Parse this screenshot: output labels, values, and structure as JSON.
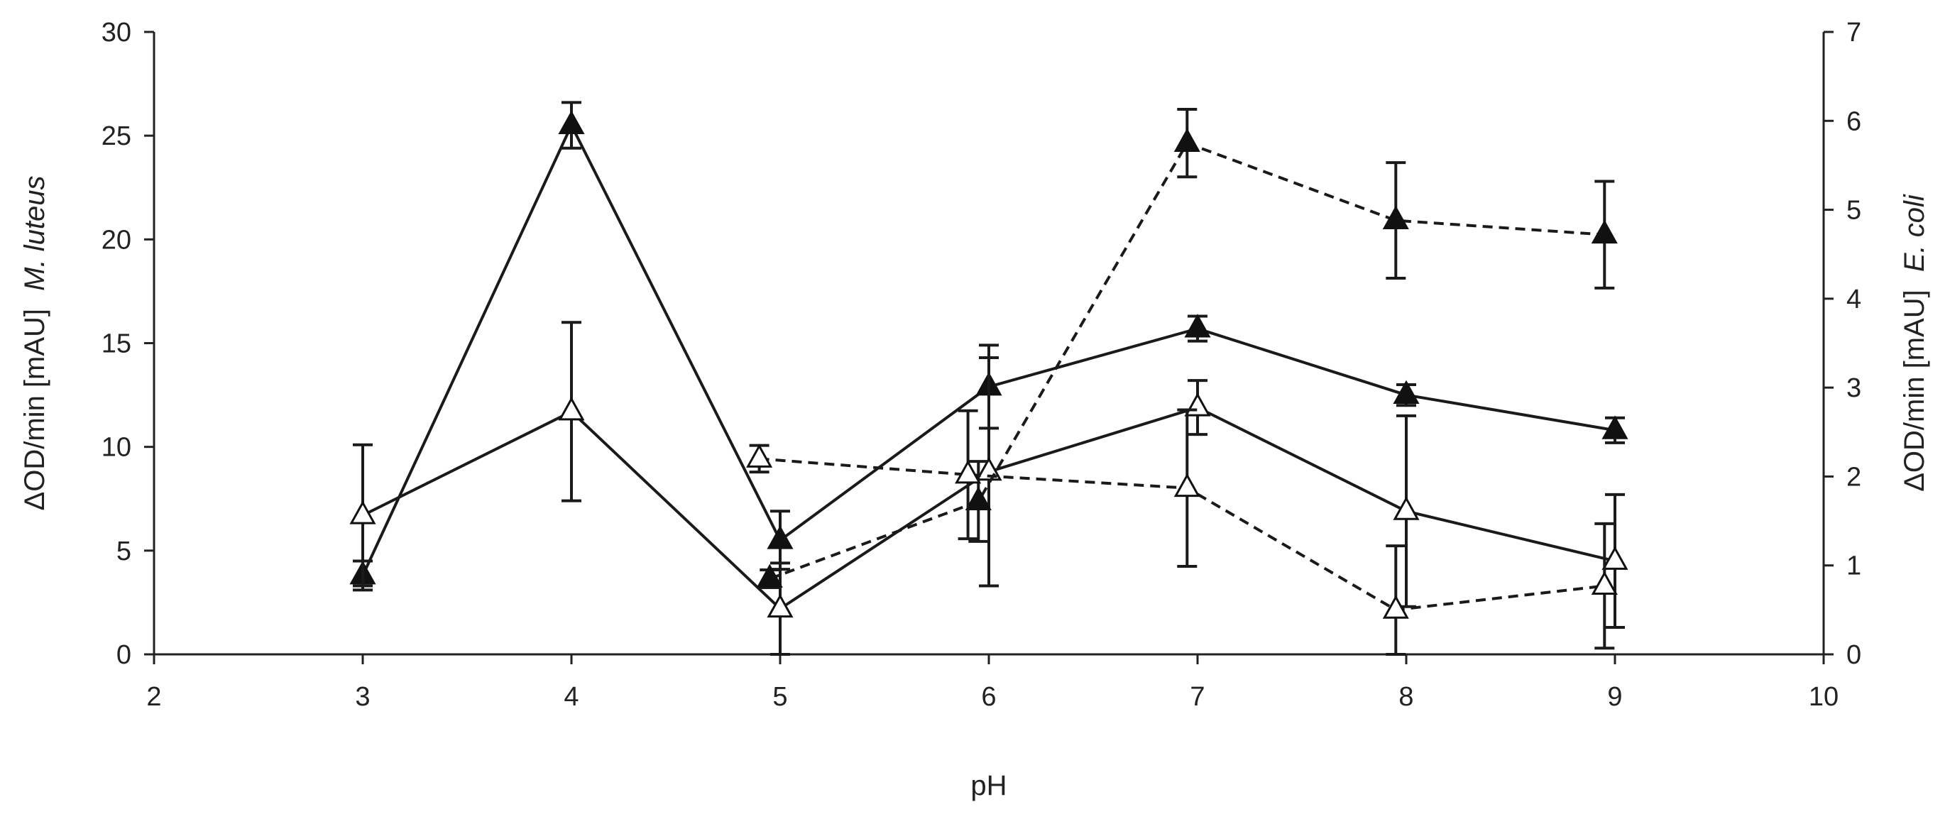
{
  "chart_data": {
    "type": "line",
    "xlabel": "pH",
    "ylabel_left": {
      "prefix": "ΔOD/min [mAU]",
      "organism": "M. luteus"
    },
    "ylabel_right": {
      "prefix": "ΔOD/min [mAU]",
      "organism": "E. coli"
    },
    "xlim": [
      2,
      10
    ],
    "ylim_left": [
      0,
      30
    ],
    "ylim_right": [
      0,
      7
    ],
    "x_ticks": [
      "2",
      "3",
      "4",
      "5",
      "6",
      "7",
      "8",
      "9",
      "10"
    ],
    "y_ticks_left": [
      "0",
      "5",
      "10",
      "15",
      "20",
      "25",
      "30"
    ],
    "y_ticks_right": [
      "0",
      "1",
      "2",
      "3",
      "4",
      "5",
      "6",
      "7"
    ],
    "series": [
      {
        "name": "M. luteus, filled, solid",
        "axis": "left",
        "marker": "filled-triangle",
        "line": "solid",
        "x": [
          3,
          4,
          5,
          6,
          7,
          8,
          9
        ],
        "y": [
          3.8,
          25.5,
          5.5,
          12.9,
          15.7,
          12.5,
          10.8
        ],
        "err": [
          0.7,
          1.1,
          1.4,
          2.0,
          0.6,
          0.5,
          0.6
        ]
      },
      {
        "name": "M. luteus, open, solid",
        "axis": "left",
        "marker": "open-triangle",
        "line": "solid",
        "x": [
          3,
          4,
          5,
          6,
          7,
          8,
          9
        ],
        "y": [
          6.7,
          11.7,
          2.2,
          8.8,
          11.9,
          6.9,
          4.5
        ],
        "err": [
          3.4,
          4.3,
          2.2,
          5.5,
          1.3,
          4.6,
          3.2
        ]
      },
      {
        "name": "E. coli, filled, dashed",
        "axis": "right",
        "marker": "filled-triangle",
        "line": "dashed",
        "x": [
          4.95,
          5.95,
          6.95,
          7.95,
          8.95
        ],
        "y": [
          0.85,
          1.72,
          5.75,
          4.88,
          4.72
        ],
        "err": [
          0.1,
          0.45,
          0.38,
          0.65,
          0.6
        ]
      },
      {
        "name": "E. coli, open, dashed",
        "axis": "right",
        "marker": "open-triangle",
        "line": "dashed",
        "x": [
          4.9,
          5.9,
          6.95,
          7.95,
          8.95
        ],
        "y": [
          2.2,
          2.02,
          1.87,
          0.5,
          0.77
        ],
        "err": [
          0.15,
          0.72,
          0.88,
          0.72,
          0.7
        ]
      }
    ]
  }
}
